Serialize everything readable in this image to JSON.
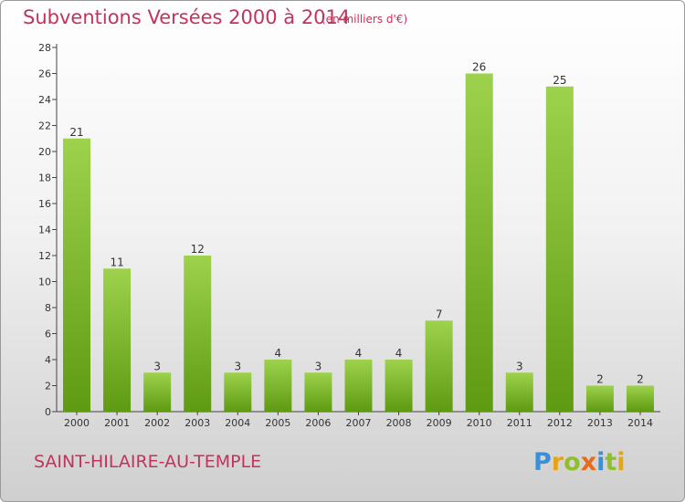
{
  "title": "Subventions Versées 2000 à 2014",
  "subtitle": "(en milliers d'€)",
  "commune": "SAINT-HILAIRE-AU-TEMPLE",
  "logo_text": "Proxiti",
  "colors": {
    "title": "#c4335c",
    "bar_top": "#9ed24c",
    "bar_bottom": "#5e9a12"
  },
  "chart_data": {
    "type": "bar",
    "title": "Subventions Versées 2000 à 2014",
    "subtitle": "(en milliers d'€)",
    "categories": [
      "2000",
      "2001",
      "2002",
      "2003",
      "2004",
      "2005",
      "2006",
      "2007",
      "2008",
      "2009",
      "2010",
      "2011",
      "2012",
      "2013",
      "2014"
    ],
    "values": [
      21,
      11,
      3,
      12,
      3,
      4,
      3,
      4,
      4,
      7,
      26,
      3,
      25,
      2,
      2
    ],
    "ylim": [
      0,
      28
    ],
    "yticks": [
      0,
      2,
      4,
      6,
      8,
      10,
      12,
      14,
      16,
      18,
      20,
      22,
      24,
      26,
      28
    ],
    "grid": false
  }
}
